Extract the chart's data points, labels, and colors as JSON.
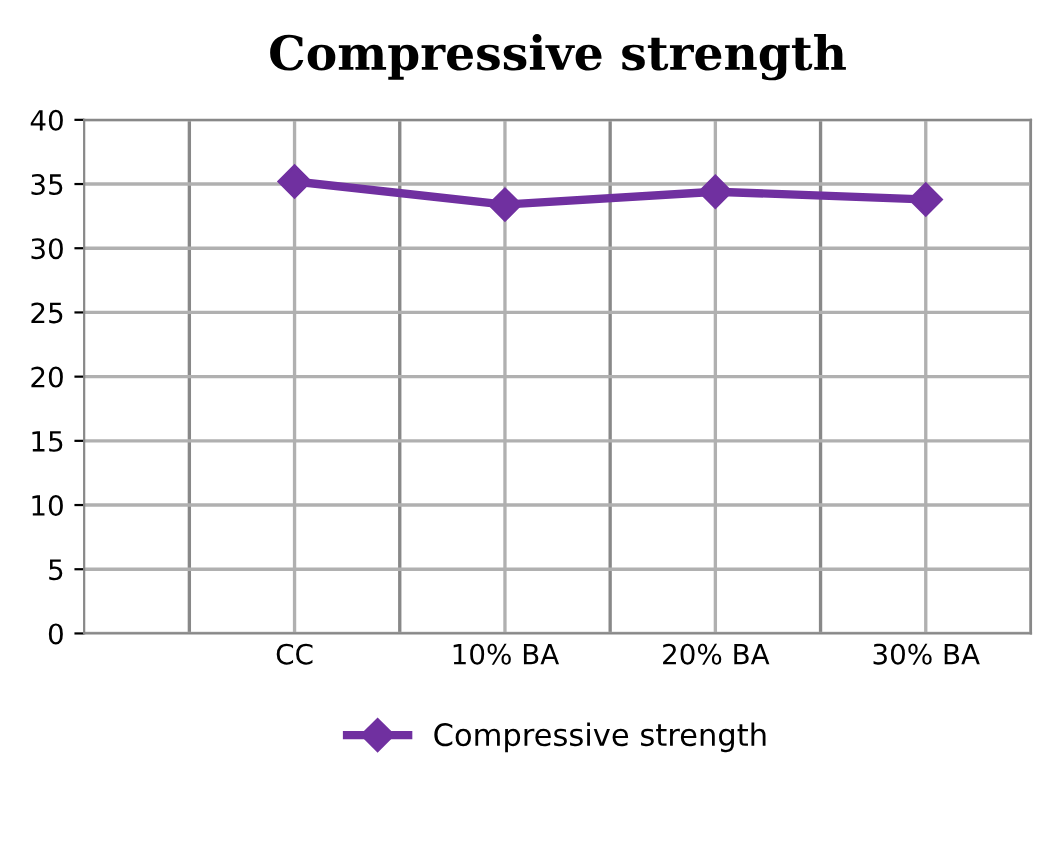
{
  "chart_data": {
    "type": "line",
    "title": "Compressive strength",
    "categories": [
      "CC",
      "10% BA",
      "20% BA",
      "30% BA"
    ],
    "series": [
      {
        "name": "Compressive strength",
        "color": "#7030a0",
        "values": [
          35.2,
          33.4,
          34.4,
          33.8
        ]
      }
    ],
    "ylim": [
      0,
      40
    ],
    "yticks": [
      0,
      5,
      10,
      15,
      20,
      25,
      30,
      35,
      40
    ],
    "grid": true,
    "legend": "bottom",
    "marker": "diamond",
    "line_style": "solid"
  }
}
